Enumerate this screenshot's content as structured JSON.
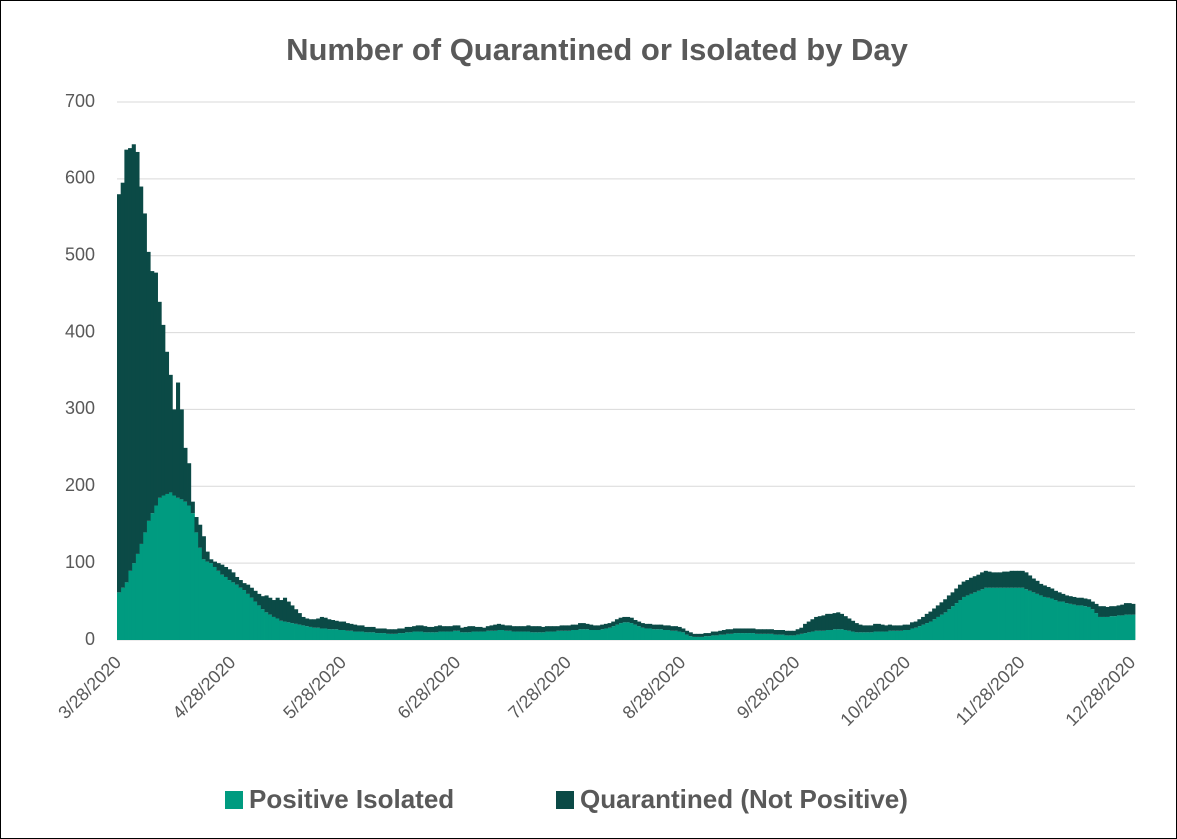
{
  "chart_data": {
    "type": "stacked_bar",
    "title": "Number of Quarantined or Isolated by Day",
    "categories": [
      "3/28/2020",
      null,
      null,
      null,
      null,
      null,
      null,
      null,
      null,
      null,
      null,
      null,
      null,
      null,
      null,
      null,
      null,
      null,
      null,
      null,
      null,
      null,
      null,
      null,
      null,
      null,
      null,
      null,
      null,
      null,
      null,
      "4/28/2020",
      null,
      null,
      null,
      null,
      null,
      null,
      null,
      null,
      null,
      null,
      null,
      null,
      null,
      null,
      null,
      null,
      null,
      null,
      null,
      null,
      null,
      null,
      null,
      null,
      null,
      null,
      null,
      null,
      null,
      "5/28/2020",
      null,
      null,
      null,
      null,
      null,
      null,
      null,
      null,
      null,
      null,
      null,
      null,
      null,
      null,
      null,
      null,
      null,
      null,
      null,
      null,
      null,
      null,
      null,
      null,
      null,
      null,
      null,
      null,
      null,
      null,
      "6/28/2020",
      null,
      null,
      null,
      null,
      null,
      null,
      null,
      null,
      null,
      null,
      null,
      null,
      null,
      null,
      null,
      null,
      null,
      null,
      null,
      null,
      null,
      null,
      null,
      null,
      null,
      null,
      null,
      null,
      null,
      "7/28/2020",
      null,
      null,
      null,
      null,
      null,
      null,
      null,
      null,
      null,
      null,
      null,
      null,
      null,
      null,
      null,
      null,
      null,
      null,
      null,
      null,
      null,
      null,
      null,
      null,
      null,
      null,
      null,
      null,
      null,
      null,
      "8/28/2020",
      null,
      null,
      null,
      null,
      null,
      null,
      null,
      null,
      null,
      null,
      null,
      null,
      null,
      null,
      null,
      null,
      null,
      null,
      null,
      null,
      null,
      null,
      null,
      null,
      null,
      null,
      null,
      null,
      null,
      null,
      "9/28/2020",
      null,
      null,
      null,
      null,
      null,
      null,
      null,
      null,
      null,
      null,
      null,
      null,
      null,
      null,
      null,
      null,
      null,
      null,
      null,
      null,
      null,
      null,
      null,
      null,
      null,
      null,
      null,
      null,
      null,
      "10/28/2020",
      null,
      null,
      null,
      null,
      null,
      null,
      null,
      null,
      null,
      null,
      null,
      null,
      null,
      null,
      null,
      null,
      null,
      null,
      null,
      null,
      null,
      null,
      null,
      null,
      null,
      null,
      null,
      null,
      null,
      null,
      "11/28/2020",
      null,
      null,
      null,
      null,
      null,
      null,
      null,
      null,
      null,
      null,
      null,
      null,
      null,
      null,
      null,
      null,
      null,
      null,
      null,
      null,
      null,
      null,
      null,
      null,
      null,
      null,
      null,
      null,
      null,
      "12/28/2020"
    ],
    "series": [
      {
        "name": "Positive Isolated",
        "color": "#009b80",
        "values": [
          62,
          68,
          75,
          90,
          100,
          112,
          125,
          140,
          155,
          165,
          175,
          185,
          188,
          190,
          192,
          188,
          185,
          183,
          180,
          175,
          165,
          140,
          120,
          105,
          102,
          100,
          95,
          90,
          85,
          82,
          78,
          75,
          72,
          68,
          65,
          60,
          55,
          50,
          45,
          40,
          36,
          33,
          30,
          28,
          25,
          24,
          23,
          22,
          21,
          20,
          19,
          18,
          17,
          16,
          16,
          15,
          15,
          14,
          14,
          14,
          13,
          13,
          12,
          12,
          11,
          11,
          11,
          10,
          10,
          10,
          9,
          9,
          9,
          8,
          8,
          8,
          9,
          9,
          10,
          10,
          11,
          11,
          11,
          10,
          10,
          10,
          10,
          11,
          11,
          11,
          11,
          12,
          12,
          10,
          10,
          10,
          11,
          11,
          11,
          11,
          12,
          12,
          12,
          13,
          13,
          12,
          12,
          11,
          11,
          11,
          11,
          11,
          10,
          10,
          10,
          10,
          11,
          11,
          11,
          12,
          12,
          12,
          12,
          13,
          13,
          14,
          14,
          14,
          13,
          13,
          13,
          14,
          15,
          16,
          18,
          20,
          22,
          23,
          23,
          22,
          20,
          18,
          16,
          15,
          15,
          14,
          14,
          14,
          13,
          13,
          12,
          12,
          11,
          10,
          7,
          5,
          4,
          4,
          4,
          5,
          5,
          6,
          6,
          7,
          7,
          8,
          8,
          9,
          9,
          9,
          9,
          9,
          9,
          8,
          8,
          8,
          8,
          8,
          7,
          7,
          7,
          6,
          6,
          6,
          7,
          8,
          9,
          10,
          11,
          12,
          12,
          12,
          13,
          13,
          14,
          14,
          14,
          13,
          12,
          11,
          10,
          10,
          10,
          10,
          10,
          11,
          11,
          11,
          11,
          12,
          12,
          12,
          12,
          13,
          13,
          15,
          16,
          18,
          20,
          22,
          24,
          27,
          30,
          33,
          36,
          40,
          44,
          48,
          52,
          56,
          58,
          60,
          62,
          64,
          66,
          68,
          68,
          68,
          68,
          68,
          68,
          68,
          68,
          68,
          68,
          68,
          66,
          64,
          62,
          60,
          58,
          56,
          55,
          54,
          52,
          50,
          50,
          48,
          47,
          46,
          45,
          45,
          44,
          43,
          40,
          35,
          30,
          30,
          30,
          31,
          31,
          32,
          32,
          33,
          33,
          33
        ]
      },
      {
        "name": "Quarantined (Not Positive)",
        "color": "#0b4a46",
        "values": [
          518,
          527,
          563,
          550,
          545,
          523,
          465,
          415,
          350,
          315,
          303,
          255,
          222,
          185,
          153,
          112,
          150,
          117,
          70,
          55,
          15,
          20,
          30,
          30,
          13,
          5,
          7,
          10,
          13,
          13,
          14,
          13,
          10,
          10,
          9,
          12,
          13,
          14,
          15,
          17,
          22,
          22,
          22,
          27,
          27,
          31,
          27,
          23,
          19,
          15,
          11,
          10,
          10,
          11,
          12,
          15,
          14,
          13,
          12,
          11,
          11,
          11,
          10,
          9,
          9,
          8,
          8,
          7,
          7,
          7,
          6,
          6,
          6,
          6,
          6,
          6,
          6,
          6,
          7,
          7,
          7,
          8,
          8,
          8,
          7,
          7,
          8,
          8,
          7,
          7,
          7,
          7,
          7,
          6,
          7,
          8,
          7,
          6,
          6,
          5,
          6,
          7,
          8,
          8,
          7,
          7,
          7,
          7,
          7,
          7,
          7,
          8,
          8,
          8,
          8,
          7,
          7,
          7,
          7,
          6,
          7,
          7,
          7,
          7,
          7,
          8,
          8,
          7,
          7,
          6,
          6,
          6,
          6,
          6,
          6,
          7,
          7,
          7,
          7,
          7,
          6,
          6,
          6,
          6,
          6,
          6,
          6,
          6,
          6,
          6,
          6,
          6,
          6,
          5,
          5,
          5,
          4,
          4,
          4,
          4,
          4,
          5,
          5,
          5,
          6,
          6,
          6,
          6,
          6,
          6,
          6,
          6,
          6,
          6,
          6,
          6,
          6,
          6,
          6,
          6,
          6,
          6,
          6,
          6,
          7,
          8,
          12,
          14,
          16,
          18,
          19,
          20,
          21,
          21,
          21,
          22,
          20,
          18,
          16,
          14,
          12,
          10,
          9,
          9,
          9,
          10,
          10,
          9,
          8,
          8,
          7,
          7,
          7,
          7,
          7,
          8,
          8,
          9,
          10,
          12,
          13,
          14,
          15,
          16,
          17,
          18,
          18,
          19,
          20,
          20,
          20,
          21,
          21,
          21,
          22,
          22,
          21,
          20,
          20,
          20,
          21,
          21,
          22,
          22,
          22,
          22,
          22,
          20,
          18,
          17,
          15,
          15,
          14,
          13,
          12,
          12,
          10,
          10,
          10,
          10,
          10,
          10,
          10,
          10,
          10,
          12,
          14,
          14,
          13,
          13,
          13,
          13,
          14,
          15,
          15,
          14
        ]
      }
    ],
    "ylim": [
      0,
      700
    ],
    "yticks": [
      0,
      100,
      200,
      300,
      400,
      500,
      600,
      700
    ],
    "grid": true,
    "legend": "bottom"
  }
}
